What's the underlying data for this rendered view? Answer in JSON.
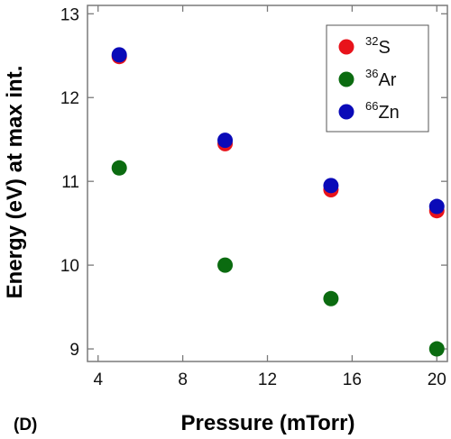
{
  "chart_data": {
    "type": "scatter",
    "panel_label": "(D)",
    "xlabel": "Pressure (mTorr)",
    "ylabel": "Energy (eV) at max int.",
    "xlim": [
      3.5,
      20.5
    ],
    "ylim": [
      8.85,
      13.1
    ],
    "xticks": [
      4,
      8,
      12,
      16,
      20
    ],
    "yticks": [
      9,
      10,
      11,
      12,
      13
    ],
    "grid": false,
    "legend_position": "top-right",
    "series": [
      {
        "name": "S",
        "mass": "32",
        "color": "#e8131b",
        "x": [
          5,
          10,
          15,
          20
        ],
        "y": [
          12.49,
          11.45,
          10.9,
          10.65
        ]
      },
      {
        "name": "Ar",
        "mass": "36",
        "color": "#0b6b10",
        "x": [
          5,
          10,
          15,
          20
        ],
        "y": [
          11.16,
          10.0,
          9.6,
          9.0
        ]
      },
      {
        "name": "Zn",
        "mass": "66",
        "color": "#0a0ab8",
        "x": [
          5,
          10,
          15,
          20
        ],
        "y": [
          12.51,
          11.49,
          10.95,
          10.7
        ]
      }
    ]
  }
}
